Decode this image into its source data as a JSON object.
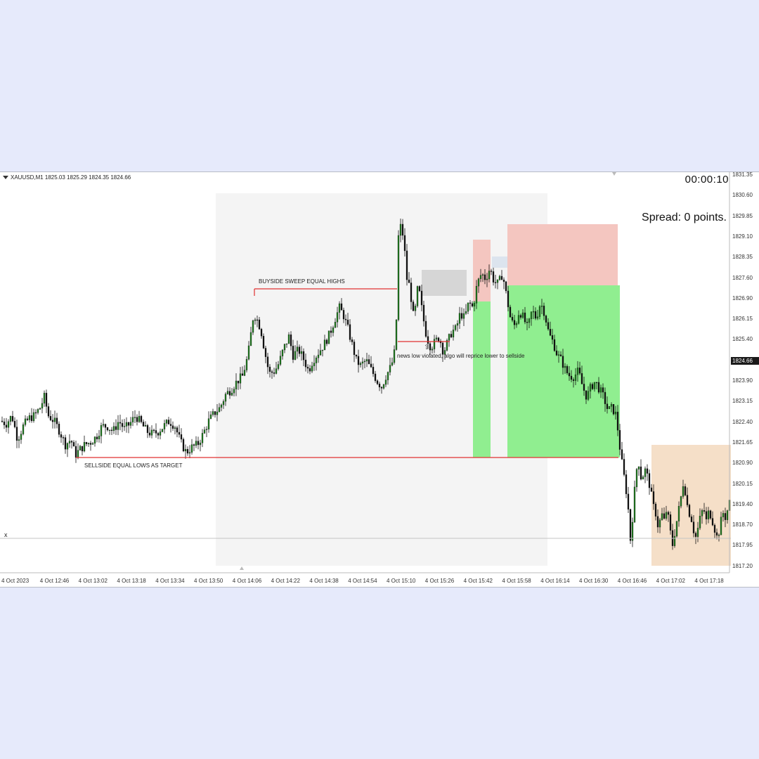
{
  "chart_header": {
    "symbol_info": "XAUUSD,M1  1825.03 1825.29 1824.35 1824.66",
    "timer": "00:00:10",
    "spread": "Spread: 0 points."
  },
  "annotations": {
    "buyside": "BUYSIDE SWEEP EQUAL HIGHS",
    "sellside": "SELLSIDE EQUAL LOWS AS TARGET",
    "news": "news low violated, algo will reprice lower to sellside",
    "arrow": "⇧",
    "x_marker": "x"
  },
  "price_axis": {
    "labels": [
      "1831.35",
      "1830.60",
      "1829.85",
      "1829.10",
      "1828.35",
      "1827.60",
      "1826.90",
      "1826.15",
      "1825.40",
      "1824.66",
      "1823.90",
      "1823.15",
      "1822.40",
      "1821.65",
      "1820.90",
      "1820.15",
      "1819.40",
      "1818.70",
      "1817.95",
      "1817.20"
    ],
    "current": "1824.66"
  },
  "time_axis": {
    "labels": [
      "4 Oct 2023",
      "4 Oct 12:46",
      "4 Oct 13:02",
      "4 Oct 13:18",
      "4 Oct 13:34",
      "4 Oct 13:50",
      "4 Oct 14:06",
      "4 Oct 14:22",
      "4 Oct 14:38",
      "4 Oct 14:54",
      "4 Oct 15:10",
      "4 Oct 15:26",
      "4 Oct 15:42",
      "4 Oct 15:58",
      "4 Oct 16:14",
      "4 Oct 16:30",
      "4 Oct 16:46",
      "4 Oct 17:02",
      "4 Oct 17:18"
    ]
  },
  "colors": {
    "bull": "#1e7a1e",
    "bear": "#111111",
    "level_line": "#e03030",
    "session_shade": "#f4f4f4",
    "green_zone": "#90ee90",
    "red_zone": "#f4c6c0",
    "gray_zone": "#d6d6d6",
    "blue_zone": "#dce4ee",
    "target_zone": "#f5dfc8"
  },
  "chart_data": {
    "type": "candlestick",
    "symbol": "XAUUSD",
    "timeframe": "M1",
    "ylim": [
      1817.2,
      1831.35
    ],
    "close_path": [
      [
        0,
        1822.7
      ],
      [
        8,
        1822.6
      ],
      [
        16,
        1822.9
      ],
      [
        24,
        1822.0
      ],
      [
        32,
        1822.5
      ],
      [
        40,
        1822.8
      ],
      [
        48,
        1822.9
      ],
      [
        56,
        1823.2
      ],
      [
        62,
        1823.6
      ],
      [
        68,
        1822.9
      ],
      [
        76,
        1822.7
      ],
      [
        84,
        1822.3
      ],
      [
        92,
        1821.8
      ],
      [
        100,
        1822.0
      ],
      [
        106,
        1821.4
      ],
      [
        112,
        1821.6
      ],
      [
        120,
        1821.8
      ],
      [
        128,
        1821.9
      ],
      [
        136,
        1822.1
      ],
      [
        144,
        1822.5
      ],
      [
        152,
        1822.5
      ],
      [
        160,
        1822.3
      ],
      [
        168,
        1822.7
      ],
      [
        176,
        1822.4
      ],
      [
        184,
        1822.6
      ],
      [
        192,
        1822.9
      ],
      [
        200,
        1822.6
      ],
      [
        208,
        1822.3
      ],
      [
        216,
        1822.2
      ],
      [
        224,
        1822.3
      ],
      [
        232,
        1822.5
      ],
      [
        240,
        1822.7
      ],
      [
        248,
        1822.5
      ],
      [
        256,
        1821.9
      ],
      [
        264,
        1821.5
      ],
      [
        272,
        1821.7
      ],
      [
        280,
        1821.8
      ],
      [
        288,
        1822.2
      ],
      [
        296,
        1822.7
      ],
      [
        304,
        1823.0
      ],
      [
        312,
        1823.2
      ],
      [
        320,
        1823.7
      ],
      [
        328,
        1823.9
      ],
      [
        336,
        1824.2
      ],
      [
        344,
        1824.4
      ],
      [
        352,
        1825.2
      ],
      [
        356,
        1826.0
      ],
      [
        360,
        1826.8
      ],
      [
        364,
        1826.6
      ],
      [
        370,
        1826.2
      ],
      [
        376,
        1825.3
      ],
      [
        382,
        1824.5
      ],
      [
        390,
        1824.6
      ],
      [
        396,
        1824.9
      ],
      [
        402,
        1825.4
      ],
      [
        410,
        1825.9
      ],
      [
        416,
        1825.2
      ],
      [
        424,
        1825.4
      ],
      [
        432,
        1825.0
      ],
      [
        438,
        1824.6
      ],
      [
        444,
        1825.0
      ],
      [
        452,
        1825.3
      ],
      [
        460,
        1825.6
      ],
      [
        468,
        1826.0
      ],
      [
        476,
        1826.6
      ],
      [
        482,
        1827.0
      ],
      [
        488,
        1826.7
      ],
      [
        494,
        1826.2
      ],
      [
        500,
        1825.6
      ],
      [
        506,
        1825.0
      ],
      [
        512,
        1824.8
      ],
      [
        520,
        1825.0
      ],
      [
        528,
        1824.6
      ],
      [
        536,
        1824.2
      ],
      [
        542,
        1824.0
      ],
      [
        548,
        1824.4
      ],
      [
        556,
        1824.8
      ],
      [
        562,
        1825.5
      ],
      [
        566,
        1829.7
      ],
      [
        570,
        1830.2
      ],
      [
        574,
        1829.4
      ],
      [
        578,
        1828.1
      ],
      [
        582,
        1827.8
      ],
      [
        588,
        1826.5
      ],
      [
        594,
        1827.9
      ],
      [
        600,
        1826.8
      ],
      [
        606,
        1825.9
      ],
      [
        612,
        1825.5
      ],
      [
        618,
        1825.7
      ],
      [
        624,
        1825.9
      ],
      [
        630,
        1825.3
      ],
      [
        636,
        1825.7
      ],
      [
        642,
        1826.1
      ],
      [
        648,
        1826.2
      ],
      [
        654,
        1826.8
      ],
      [
        660,
        1826.6
      ],
      [
        666,
        1827.2
      ],
      [
        672,
        1827.0
      ],
      [
        678,
        1827.9
      ],
      [
        684,
        1828.3
      ],
      [
        690,
        1828.1
      ],
      [
        696,
        1828.5
      ],
      [
        702,
        1828.0
      ],
      [
        708,
        1827.9
      ],
      [
        714,
        1828.3
      ],
      [
        720,
        1827.4
      ],
      [
        726,
        1826.5
      ],
      [
        732,
        1826.3
      ],
      [
        738,
        1826.9
      ],
      [
        744,
        1826.6
      ],
      [
        750,
        1826.2
      ],
      [
        756,
        1826.9
      ],
      [
        762,
        1826.6
      ],
      [
        768,
        1827.2
      ],
      [
        774,
        1826.8
      ],
      [
        780,
        1826.0
      ],
      [
        786,
        1825.7
      ],
      [
        792,
        1825.2
      ],
      [
        798,
        1825.0
      ],
      [
        804,
        1824.6
      ],
      [
        810,
        1824.4
      ],
      [
        816,
        1824.4
      ],
      [
        822,
        1824.6
      ],
      [
        828,
        1824.0
      ],
      [
        834,
        1823.6
      ],
      [
        840,
        1824.0
      ],
      [
        846,
        1824.2
      ],
      [
        852,
        1823.9
      ],
      [
        858,
        1823.6
      ],
      [
        864,
        1823.1
      ],
      [
        870,
        1823.2
      ],
      [
        876,
        1822.9
      ],
      [
        880,
        1821.9
      ],
      [
        884,
        1821.1
      ],
      [
        888,
        1820.4
      ],
      [
        892,
        1819.7
      ],
      [
        896,
        1818.2
      ],
      [
        900,
        1819.3
      ],
      [
        904,
        1820.8
      ],
      [
        908,
        1821.1
      ],
      [
        912,
        1820.4
      ],
      [
        916,
        1820.9
      ],
      [
        920,
        1820.6
      ],
      [
        924,
        1820.2
      ],
      [
        928,
        1819.5
      ],
      [
        932,
        1819.2
      ],
      [
        936,
        1818.6
      ],
      [
        940,
        1819.2
      ],
      [
        944,
        1818.9
      ],
      [
        948,
        1819.4
      ],
      [
        952,
        1818.6
      ],
      [
        956,
        1818.0
      ],
      [
        960,
        1818.6
      ],
      [
        964,
        1819.2
      ],
      [
        968,
        1819.8
      ],
      [
        972,
        1820.5
      ],
      [
        976,
        1819.6
      ],
      [
        980,
        1819.2
      ],
      [
        984,
        1818.9
      ],
      [
        988,
        1818.2
      ],
      [
        992,
        1818.6
      ],
      [
        996,
        1819.1
      ],
      [
        1000,
        1819.4
      ],
      [
        1004,
        1818.9
      ],
      [
        1008,
        1819.3
      ],
      [
        1012,
        1819.0
      ],
      [
        1016,
        1818.6
      ],
      [
        1020,
        1818.2
      ],
      [
        1024,
        1818.8
      ],
      [
        1028,
        1819.2
      ],
      [
        1032,
        1819.0
      ],
      [
        1036,
        1819.6
      ]
    ]
  }
}
